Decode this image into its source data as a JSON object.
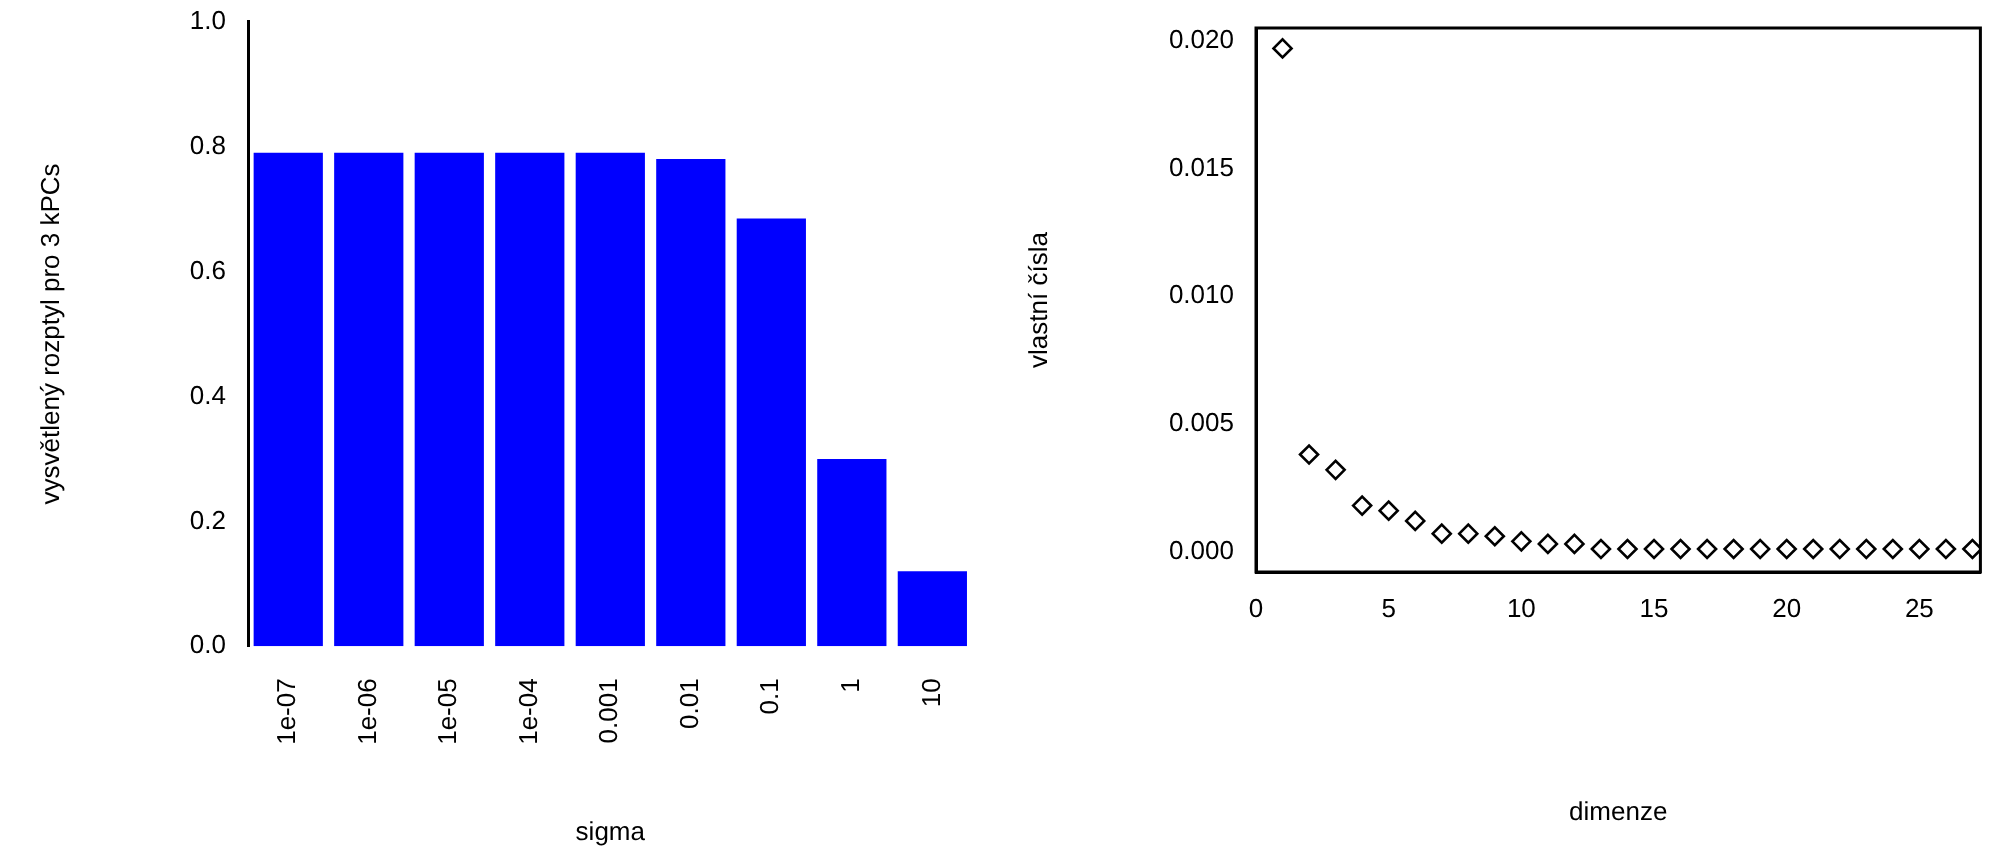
{
  "chart_data": [
    {
      "type": "bar",
      "xlabel": "sigma",
      "ylabel": "vysvětlený rozptyl pro 3 kPCs",
      "categories": [
        "1e-07",
        "1e-06",
        "1e-05",
        "1e-04",
        "0.001",
        "0.01",
        "0.1",
        "1",
        "10"
      ],
      "values": [
        0.79,
        0.79,
        0.79,
        0.79,
        0.79,
        0.78,
        0.685,
        0.3,
        0.12
      ],
      "color": "#0000ff",
      "ylim": [
        0,
        1
      ],
      "yticks": [
        {
          "value": 0,
          "label": "0.0"
        },
        0.2,
        0.4,
        0.6,
        0.8,
        {
          "value": 1,
          "label": "1.0"
        }
      ],
      "grid": false,
      "legend": false
    },
    {
      "type": "scatter",
      "xlabel": "dimenze",
      "ylabel": "vlastní čísla",
      "x": [
        1,
        2,
        3,
        4,
        5,
        6,
        7,
        8,
        9,
        10,
        11,
        12,
        13,
        14,
        15,
        16,
        17,
        18,
        19,
        20,
        21,
        22,
        23,
        24,
        25,
        26,
        27
      ],
      "values": [
        0.0197,
        0.0038,
        0.0032,
        0.0018,
        0.0016,
        0.0012,
        0.0007,
        0.0007,
        0.0006,
        0.0004,
        0.0003,
        0.0003,
        0.0001,
        0.0001,
        0.0001,
        0.0001,
        0.0001,
        0.0001,
        0.0001,
        0.0001,
        0.0001,
        0.0001,
        0.0001,
        0.0001,
        0.0001,
        0.0001,
        0.0001
      ],
      "color": "#000000",
      "marker": "diamond",
      "xlim": [
        0,
        27.3
      ],
      "xticks": [
        0,
        5,
        10,
        15,
        20,
        25
      ],
      "ylim": [
        -0.0008,
        0.0205
      ],
      "yticks": [
        {
          "value": 0,
          "label": "0.000"
        },
        {
          "value": 0.005,
          "label": "0.005"
        },
        {
          "value": 0.01,
          "label": "0.010"
        },
        {
          "value": 0.015,
          "label": "0.015"
        },
        {
          "value": 0.02,
          "label": "0.020"
        }
      ],
      "legend": false
    }
  ]
}
